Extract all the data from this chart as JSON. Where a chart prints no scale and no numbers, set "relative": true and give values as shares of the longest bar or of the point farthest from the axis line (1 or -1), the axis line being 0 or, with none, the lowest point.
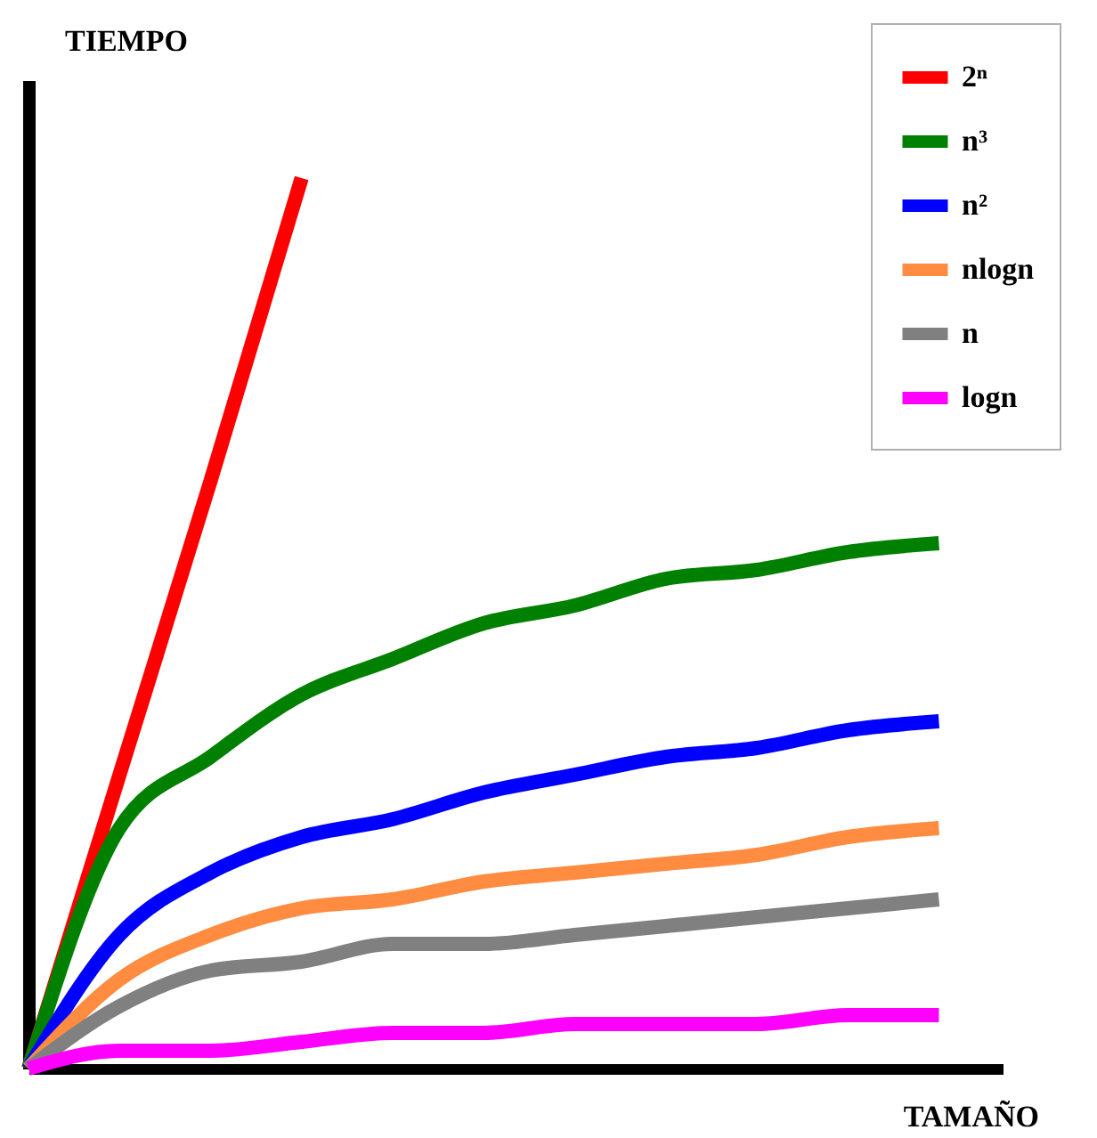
{
  "chart_data": {
    "type": "line",
    "relative": true,
    "xlabel": "TAMAÑO",
    "ylabel": "TIEMPO",
    "legend": "top right",
    "categories": [
      null,
      null,
      null,
      null,
      null,
      null,
      null,
      null,
      null,
      null,
      null
    ],
    "series": [
      {
        "name": "2ⁿ",
        "color": "#ff0000",
        "values": [
          0,
          0.33,
          0.66,
          1,
          null,
          null,
          null,
          null,
          null,
          null,
          null
        ]
      },
      {
        "name": "n³",
        "color": "#008000",
        "values": [
          0,
          0.27,
          0.35,
          0.42,
          0.46,
          0.5,
          0.52,
          0.55,
          0.56,
          0.58,
          0.59
        ]
      },
      {
        "name": "n²",
        "color": "#0000ff",
        "values": [
          0,
          0.15,
          0.22,
          0.26,
          0.28,
          0.31,
          0.33,
          0.35,
          0.36,
          0.38,
          0.39
        ]
      },
      {
        "name": "nlogn",
        "color": "#ff8c40",
        "values": [
          0,
          0.1,
          0.15,
          0.18,
          0.19,
          0.21,
          0.22,
          0.23,
          0.24,
          0.26,
          0.27
        ]
      },
      {
        "name": "n",
        "color": "#808080",
        "values": [
          0,
          0.07,
          0.11,
          0.12,
          0.14,
          0.14,
          0.15,
          0.16,
          0.17,
          0.18,
          0.19
        ]
      },
      {
        "name": "logn",
        "color": "#ff00ff",
        "values": [
          0,
          0.02,
          0.02,
          0.03,
          0.04,
          0.04,
          0.05,
          0.05,
          0.05,
          0.06,
          0.06
        ]
      }
    ]
  }
}
